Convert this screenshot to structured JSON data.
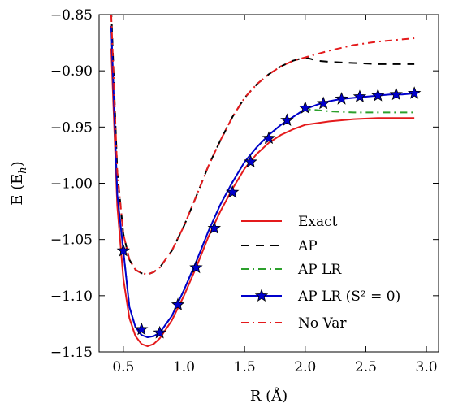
{
  "chart_data": {
    "type": "line",
    "xlabel": "R (Å)",
    "ylabel": "E (E_h)",
    "xlim": [
      0.3,
      3.1
    ],
    "ylim": [
      -1.15,
      -0.85
    ],
    "xticks": [
      0.5,
      1.0,
      1.5,
      2.0,
      2.5,
      3.0
    ],
    "xtick_labels": [
      "0.5",
      "1.0",
      "1.5",
      "2.0",
      "2.5",
      "3.0"
    ],
    "yticks": [
      -0.85,
      -0.9,
      -0.95,
      -1.0,
      -1.05,
      -1.1,
      -1.15
    ],
    "ytick_labels": [
      "−0.85",
      "−0.90",
      "−0.95",
      "−1.00",
      "−1.05",
      "−1.10",
      "−1.15"
    ],
    "grid": false,
    "legend_position": "lower-right",
    "series": [
      {
        "name": "Exact",
        "color": "#e41a1c",
        "style": "solid",
        "x": [
          0.4,
          0.45,
          0.5,
          0.55,
          0.6,
          0.65,
          0.7,
          0.75,
          0.8,
          0.9,
          1.0,
          1.1,
          1.2,
          1.3,
          1.4,
          1.5,
          1.6,
          1.7,
          1.8,
          1.9,
          2.0,
          2.2,
          2.4,
          2.6,
          2.8,
          2.9
        ],
        "y": [
          -0.88,
          -1.02,
          -1.085,
          -1.12,
          -1.136,
          -1.143,
          -1.145,
          -1.143,
          -1.138,
          -1.122,
          -1.1,
          -1.075,
          -1.048,
          -1.025,
          -1.005,
          -0.987,
          -0.974,
          -0.964,
          -0.957,
          -0.952,
          -0.948,
          -0.945,
          -0.943,
          -0.942,
          -0.942,
          -0.942
        ]
      },
      {
        "name": "AP",
        "color": "#000000",
        "style": "dashed",
        "x": [
          0.4,
          0.45,
          0.5,
          0.55,
          0.6,
          0.65,
          0.7,
          0.75,
          0.8,
          0.9,
          1.0,
          1.1,
          1.2,
          1.3,
          1.4,
          1.5,
          1.6,
          1.7,
          1.8,
          1.9,
          2.0,
          2.1,
          2.2,
          2.4,
          2.6,
          2.8,
          2.9
        ],
        "y": [
          -0.845,
          -0.99,
          -1.045,
          -1.068,
          -1.077,
          -1.08,
          -1.081,
          -1.079,
          -1.075,
          -1.06,
          -1.038,
          -1.012,
          -0.985,
          -0.962,
          -0.941,
          -0.924,
          -0.912,
          -0.903,
          -0.896,
          -0.891,
          -0.888,
          -0.891,
          -0.892,
          -0.893,
          -0.894,
          -0.894,
          -0.894
        ]
      },
      {
        "name": "AP LR",
        "color": "#2ca02c",
        "style": "dashdot",
        "x": [
          0.4,
          0.45,
          0.5,
          0.55,
          0.6,
          0.65,
          0.7,
          0.75,
          0.8,
          0.9,
          1.0,
          1.1,
          1.2,
          1.3,
          1.4,
          1.5,
          1.6,
          1.7,
          1.8,
          1.9,
          2.0,
          2.2,
          2.4,
          2.6,
          2.8,
          2.9
        ],
        "y": [
          -0.86,
          -1.01,
          -1.06,
          -1.11,
          -1.128,
          -1.135,
          -1.137,
          -1.136,
          -1.133,
          -1.118,
          -1.095,
          -1.07,
          -1.043,
          -1.019,
          -0.999,
          -0.981,
          -0.968,
          -0.957,
          -0.948,
          -0.941,
          -0.934,
          -0.936,
          -0.937,
          -0.937,
          -0.937,
          -0.937
        ]
      },
      {
        "name": "AP LR (S² = 0)",
        "color": "#0000cc",
        "style": "solid-star",
        "x": [
          0.4,
          0.45,
          0.5,
          0.55,
          0.6,
          0.65,
          0.7,
          0.75,
          0.8,
          0.9,
          1.0,
          1.1,
          1.2,
          1.3,
          1.4,
          1.5,
          1.6,
          1.7,
          1.8,
          1.9,
          2.0,
          2.1,
          2.2,
          2.3,
          2.4,
          2.5,
          2.6,
          2.7,
          2.8,
          2.9
        ],
        "y": [
          -0.86,
          -1.01,
          -1.06,
          -1.11,
          -1.128,
          -1.135,
          -1.137,
          -1.136,
          -1.133,
          -1.118,
          -1.095,
          -1.07,
          -1.043,
          -1.019,
          -0.999,
          -0.981,
          -0.968,
          -0.957,
          -0.948,
          -0.941,
          -0.934,
          -0.93,
          -0.927,
          -0.925,
          -0.924,
          -0.923,
          -0.922,
          -0.921,
          -0.921,
          -0.92
        ]
      },
      {
        "name": "No Var",
        "color": "#e41a1c",
        "style": "dashdot",
        "x": [
          0.4,
          0.45,
          0.5,
          0.55,
          0.6,
          0.65,
          0.7,
          0.75,
          0.8,
          0.9,
          1.0,
          1.1,
          1.2,
          1.3,
          1.4,
          1.5,
          1.6,
          1.7,
          1.8,
          1.9,
          2.0,
          2.2,
          2.4,
          2.6,
          2.8,
          2.9
        ],
        "y": [
          -0.85,
          -0.99,
          -1.045,
          -1.068,
          -1.077,
          -1.08,
          -1.081,
          -1.079,
          -1.075,
          -1.06,
          -1.038,
          -1.012,
          -0.985,
          -0.962,
          -0.941,
          -0.924,
          -0.912,
          -0.903,
          -0.896,
          -0.891,
          -0.888,
          -0.882,
          -0.877,
          -0.874,
          -0.872,
          -0.871
        ]
      }
    ],
    "marker_points": {
      "series": "AP LR (S² = 0)",
      "x": [
        0.5,
        0.65,
        0.8,
        0.95,
        1.1,
        1.25,
        1.4,
        1.55,
        1.7,
        1.85,
        2.0,
        2.15,
        2.3,
        2.45,
        2.6,
        2.75,
        2.9
      ],
      "y": [
        -1.06,
        -1.13,
        -1.133,
        -1.108,
        -1.075,
        -1.04,
        -1.008,
        -0.981,
        -0.96,
        -0.944,
        -0.933,
        -0.929,
        -0.925,
        -0.923,
        -0.922,
        -0.921,
        -0.92
      ]
    }
  }
}
